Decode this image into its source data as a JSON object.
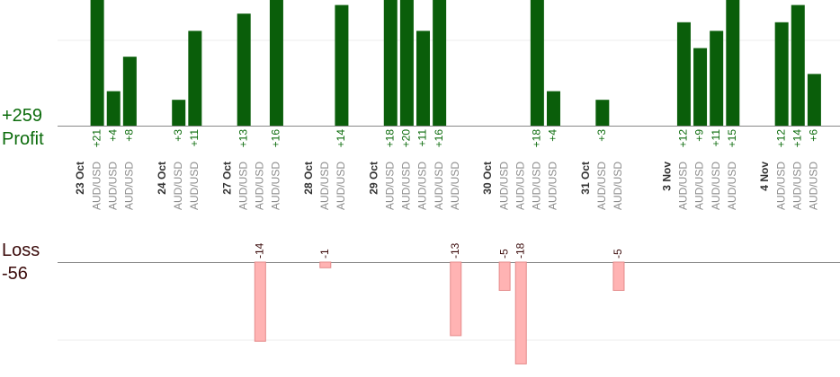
{
  "summary": {
    "profit_total": "+259",
    "profit_label": "Profit",
    "loss_label": "Loss",
    "loss_total": "-56"
  },
  "colors": {
    "profit_bar": "#0a5e0a",
    "profit_text": "#0b6b0b",
    "loss_bar": "#ffb3b3",
    "loss_bar_edge": "#e58a8a",
    "loss_text": "#3a0a0a",
    "pair_text": "#8c8c8c",
    "date_text": "#333333",
    "axis": "#888888",
    "grid": "#eeeeee"
  },
  "chart_data": {
    "type": "bar",
    "profit_axis_max": 15,
    "loss_axis_max": 18,
    "columns": [
      {
        "date": "23 Oct"
      },
      {
        "pair": "AUD/USD",
        "value": 21,
        "label": "+21"
      },
      {
        "pair": "AUD/USD",
        "value": 4,
        "label": "+4"
      },
      {
        "pair": "AUD/USD",
        "value": 8,
        "label": "+8"
      },
      {},
      {
        "date": "24 Oct"
      },
      {
        "pair": "AUD/USD",
        "value": 3,
        "label": "+3"
      },
      {
        "pair": "AUD/USD",
        "value": 11,
        "label": "+11"
      },
      {},
      {
        "date": "27 Oct"
      },
      {
        "pair": "AUD/USD",
        "value": 13,
        "label": "+13"
      },
      {
        "pair": "AUD/USD",
        "value": -14,
        "label": "-14"
      },
      {
        "pair": "AUD/USD",
        "value": 16,
        "label": "+16"
      },
      {},
      {
        "date": "28 Oct"
      },
      {
        "pair": "AUD/USD",
        "value": -1,
        "label": "-1"
      },
      {
        "pair": "AUD/USD",
        "value": 14,
        "label": "+14"
      },
      {},
      {
        "date": "29 Oct"
      },
      {
        "pair": "AUD/USD",
        "value": 18,
        "label": "+18"
      },
      {
        "pair": "AUD/USD",
        "value": 20,
        "label": "+20"
      },
      {
        "pair": "AUD/USD",
        "value": 11,
        "label": "+11"
      },
      {
        "pair": "AUD/USD",
        "value": 16,
        "label": "+16"
      },
      {
        "pair": "AUD/USD",
        "value": -13,
        "label": "-13"
      },
      {},
      {
        "date": "30 Oct"
      },
      {
        "pair": "AUD/USD",
        "value": -5,
        "label": "-5"
      },
      {
        "pair": "AUD/USD",
        "value": -18,
        "label": "-18"
      },
      {
        "pair": "AUD/USD",
        "value": 18,
        "label": "+18"
      },
      {
        "pair": "AUD/USD",
        "value": 4,
        "label": "+4"
      },
      {},
      {
        "date": "31 Oct"
      },
      {
        "pair": "AUD/USD",
        "value": 3,
        "label": "+3"
      },
      {
        "pair": "AUD/USD",
        "value": -5,
        "label": "-5"
      },
      {},
      {},
      {
        "date": "3 Nov"
      },
      {
        "pair": "AUD/USD",
        "value": 12,
        "label": "+12"
      },
      {
        "pair": "AUD/USD",
        "value": 9,
        "label": "+9"
      },
      {
        "pair": "AUD/USD",
        "value": 11,
        "label": "+11"
      },
      {
        "pair": "AUD/USD",
        "value": 15,
        "label": "+15"
      },
      {},
      {
        "date": "4 Nov"
      },
      {
        "pair": "AUD/USD",
        "value": 12,
        "label": "+12"
      },
      {
        "pair": "AUD/USD",
        "value": 14,
        "label": "+14"
      },
      {
        "pair": "AUD/USD",
        "value": 6,
        "label": "+6"
      }
    ]
  }
}
